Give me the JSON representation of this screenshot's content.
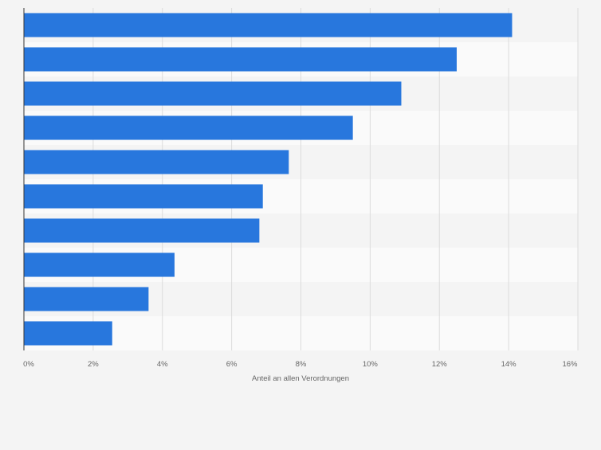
{
  "chart_data": {
    "type": "bar",
    "orientation": "horizontal",
    "xlabel": "Anteil an allen Verordnungen",
    "xlim": [
      0,
      16
    ],
    "xticks": [
      0,
      2,
      4,
      6,
      8,
      10,
      12,
      14,
      16
    ],
    "tick_labels": [
      "0%",
      "2%",
      "4%",
      "6%",
      "8%",
      "10%",
      "12%",
      "14%",
      "16%"
    ],
    "categories": [
      "",
      "",
      "",
      "",
      "",
      "",
      "",
      "",
      "",
      ""
    ],
    "values": [
      14.1,
      12.5,
      10.9,
      9.5,
      7.65,
      6.9,
      6.8,
      4.35,
      3.6,
      2.55
    ],
    "grid": true,
    "colors": {
      "bar": "#2877dd",
      "background": "#f4f4f4",
      "band_light": "#fafafa",
      "band_dark": "#f4f4f4",
      "grid": "#dcdcdc",
      "axis": "#333333",
      "tick_text": "#666666"
    }
  }
}
